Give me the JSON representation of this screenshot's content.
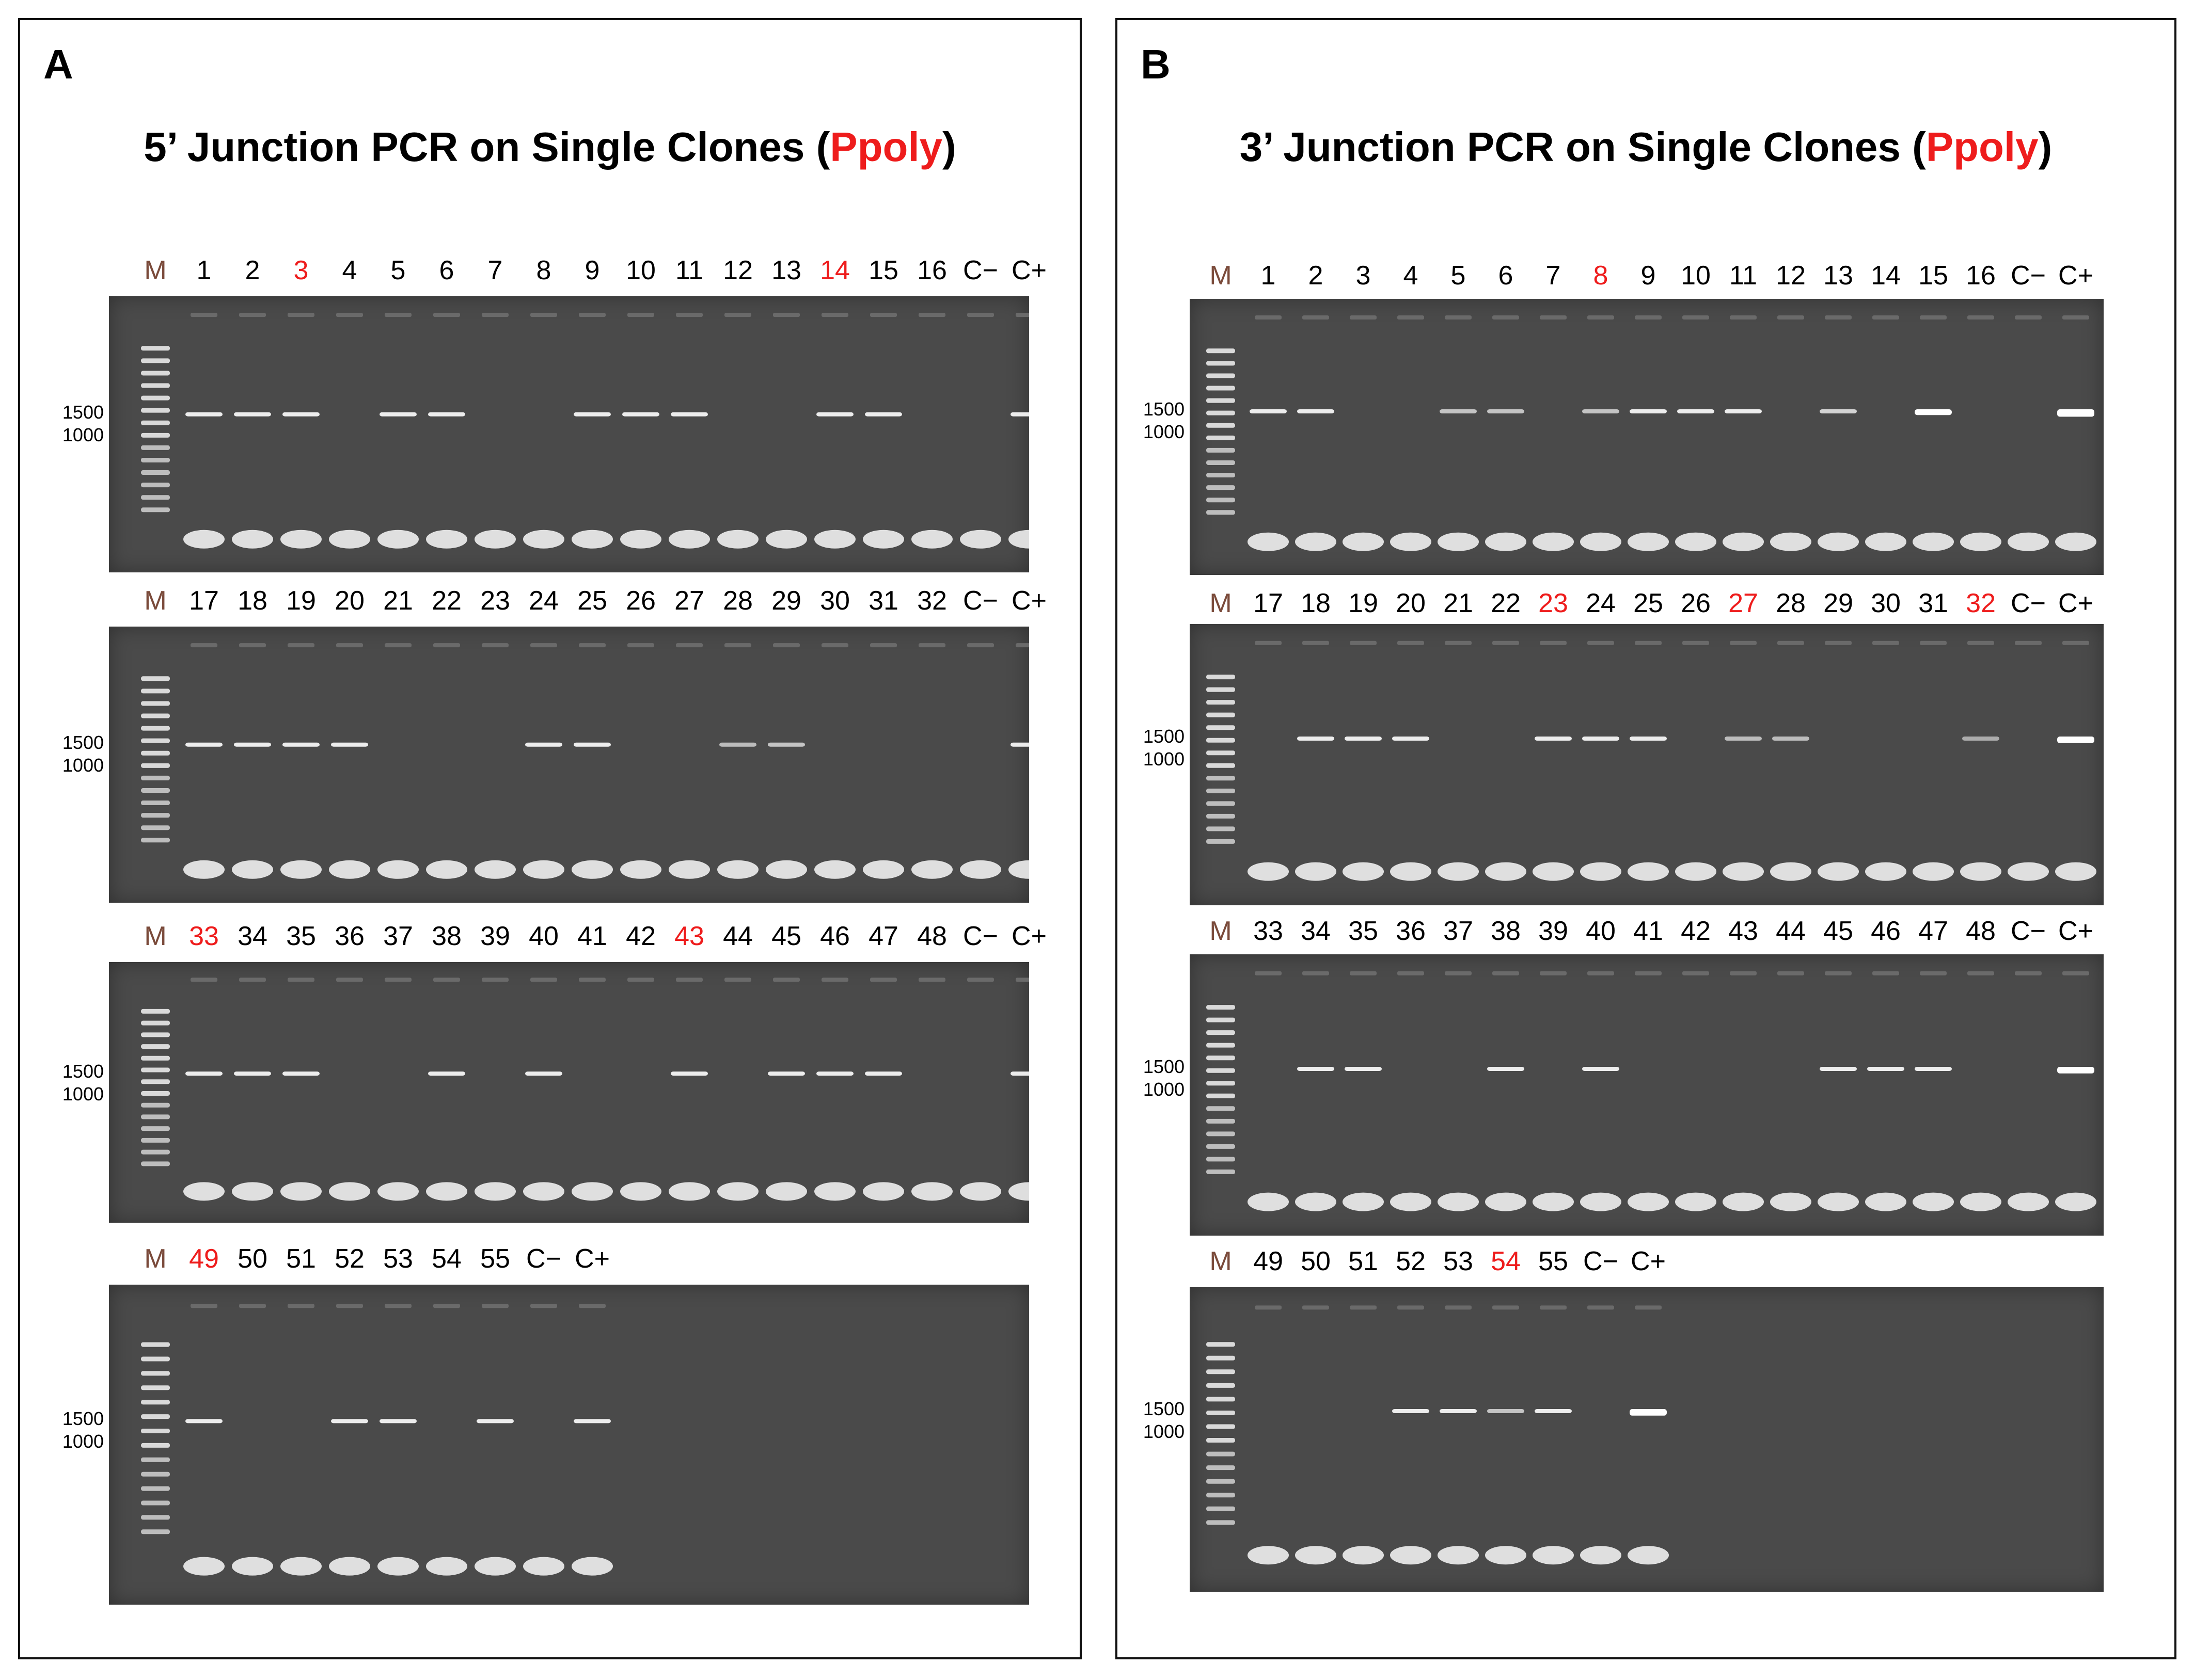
{
  "figure": {
    "panels": [
      {
        "id": "A",
        "letter": "A",
        "title": {
          "pre": "5’ Junction PCR on Single Clones (",
          "highlight": "Ppoly",
          "post": ")"
        },
        "gels": [
          {
            "labels": [
              "M",
              "1",
              "2",
              "3",
              "4",
              "5",
              "6",
              "7",
              "8",
              "9",
              "10",
              "11",
              "12",
              "13",
              "14",
              "15",
              "16",
              "C−",
              "C+"
            ],
            "highlighted": [
              "3",
              "14"
            ],
            "size_marks": [
              "1500",
              "1000"
            ],
            "bands": [
              1,
              1,
              1,
              0,
              1,
              1,
              0,
              0,
              1,
              1,
              1,
              0,
              0,
              1,
              1,
              0,
              0,
              1
            ]
          },
          {
            "labels": [
              "M",
              "17",
              "18",
              "19",
              "20",
              "21",
              "22",
              "23",
              "24",
              "25",
              "26",
              "27",
              "28",
              "29",
              "30",
              "31",
              "32",
              "C−",
              "C+"
            ],
            "highlighted": [],
            "size_marks": [
              "1500",
              "1000"
            ],
            "bands": [
              1,
              1,
              1,
              1,
              0,
              0,
              0,
              1,
              1,
              0,
              0,
              0.4,
              0.5,
              0,
              0,
              0,
              0,
              1
            ]
          },
          {
            "labels": [
              "M",
              "33",
              "34",
              "35",
              "36",
              "37",
              "38",
              "39",
              "40",
              "41",
              "42",
              "43",
              "44",
              "45",
              "46",
              "47",
              "48",
              "C−",
              "C+"
            ],
            "highlighted": [
              "33",
              "43"
            ],
            "size_marks": [
              "1500",
              "1000"
            ],
            "bands": [
              1,
              1,
              1,
              0,
              0,
              1,
              0,
              1,
              0,
              0,
              1,
              0,
              1,
              1,
              1,
              0,
              0,
              1
            ]
          },
          {
            "labels": [
              "M",
              "49",
              "50",
              "51",
              "52",
              "53",
              "54",
              "55",
              "C−",
              "C+"
            ],
            "highlighted": [
              "49"
            ],
            "size_marks": [
              "1500",
              "1000"
            ],
            "bands": [
              1,
              0,
              0,
              1,
              1,
              0,
              1,
              0,
              1
            ]
          }
        ]
      },
      {
        "id": "B",
        "letter": "B",
        "title": {
          "pre": "3’ Junction PCR on Single Clones (",
          "highlight": "Ppoly",
          "post": ")"
        },
        "gels": [
          {
            "labels": [
              "M",
              "1",
              "2",
              "3",
              "4",
              "5",
              "6",
              "7",
              "8",
              "9",
              "10",
              "11",
              "12",
              "13",
              "14",
              "15",
              "16",
              "C−",
              "C+"
            ],
            "highlighted": [
              "8"
            ],
            "size_marks": [
              "1500",
              "1000"
            ],
            "bands": [
              1,
              1,
              0,
              0,
              0.5,
              0.5,
              0,
              0.5,
              1,
              1,
              1,
              0,
              0.7,
              0,
              1.4,
              0,
              0,
              1.8
            ]
          },
          {
            "labels": [
              "M",
              "17",
              "18",
              "19",
              "20",
              "21",
              "22",
              "23",
              "24",
              "25",
              "26",
              "27",
              "28",
              "29",
              "30",
              "31",
              "32",
              "C−",
              "C+"
            ],
            "highlighted": [
              "23",
              "27",
              "32"
            ],
            "size_marks": [
              "1500",
              "1000"
            ],
            "bands": [
              0,
              1,
              1,
              1,
              0,
              0,
              1,
              1,
              1,
              0,
              0.4,
              0.4,
              0,
              0,
              0,
              0.2,
              0,
              1.6
            ]
          },
          {
            "labels": [
              "M",
              "33",
              "34",
              "35",
              "36",
              "37",
              "38",
              "39",
              "40",
              "41",
              "42",
              "43",
              "44",
              "45",
              "46",
              "47",
              "48",
              "C−",
              "C+"
            ],
            "highlighted": [],
            "size_marks": [
              "1500",
              "1000"
            ],
            "bands": [
              0,
              1,
              1,
              0,
              0,
              1,
              0,
              1,
              0,
              0,
              0,
              0,
              1,
              1,
              1,
              0,
              0,
              1.6
            ]
          },
          {
            "labels": [
              "M",
              "49",
              "50",
              "51",
              "52",
              "53",
              "54",
              "55",
              "C−",
              "C+"
            ],
            "highlighted": [
              "54"
            ],
            "size_marks": [
              "1500",
              "1000"
            ],
            "bands": [
              0,
              0,
              0,
              1,
              1,
              0.5,
              1,
              0,
              1.6
            ]
          }
        ]
      }
    ]
  }
}
